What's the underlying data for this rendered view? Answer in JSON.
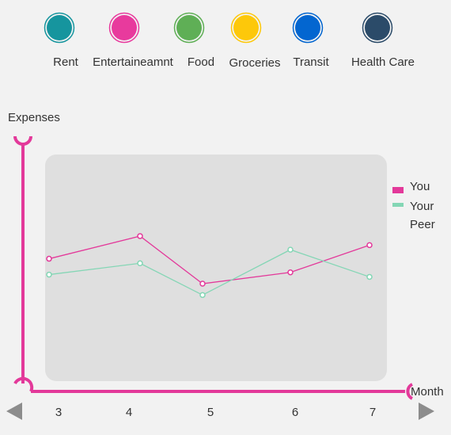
{
  "categories": [
    {
      "label": "Rent",
      "color": "#16959e"
    },
    {
      "label": "Entertaineamnt",
      "color": "#e83a9d"
    },
    {
      "label": "Food",
      "color": "#5faf56"
    },
    {
      "label": "Groceries",
      "color": "#fdc80a"
    },
    {
      "label": "Transit",
      "color": "#0366d0"
    },
    {
      "label": "Health Care",
      "color": "#2b4b69"
    }
  ],
  "nav": {
    "prev_icon": "triangle-left-icon",
    "next_icon": "triangle-right-icon"
  },
  "colors": {
    "axis": "#e3399a",
    "plot_bg": "#dfdfdf",
    "arrows": "#8c8c8c"
  },
  "chart_data": {
    "type": "line",
    "ylabel": "Expenses",
    "xlabel": "Month",
    "x": [
      3,
      4,
      5,
      6,
      7
    ],
    "yrange": [
      0,
      100
    ],
    "grid": false,
    "legend_position": "right",
    "series": [
      {
        "name": "You",
        "color": "#e3399a",
        "values": [
          54,
          64,
          43,
          48,
          60
        ]
      },
      {
        "name": "Your Peer",
        "color": "#84d6b5",
        "values": [
          47,
          52,
          38,
          58,
          46
        ]
      }
    ]
  }
}
